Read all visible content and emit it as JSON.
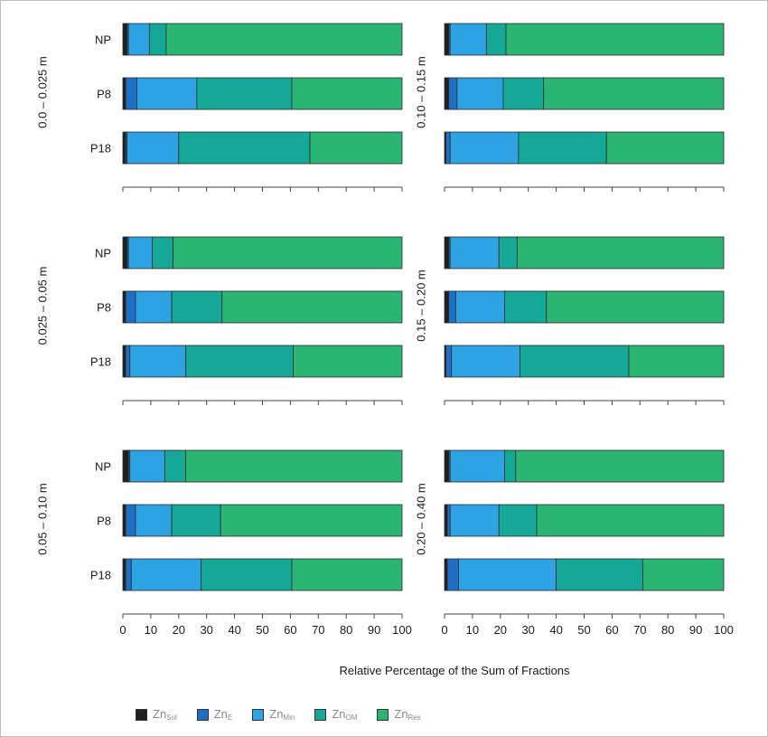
{
  "chart_data": {
    "type": "bar",
    "orientation": "horizontal",
    "stacked": true,
    "xlabel": "Relative Percentage of the Sum of Fractions",
    "xlim": [
      0,
      100
    ],
    "xticks": [
      0,
      10,
      20,
      30,
      40,
      50,
      60,
      70,
      80,
      90,
      100
    ],
    "categories": [
      "NP",
      "P8",
      "P18"
    ],
    "fractions": [
      {
        "name": "Zn",
        "sub": "Sol",
        "color": "#1f1f1f"
      },
      {
        "name": "Zn",
        "sub": "E",
        "color": "#1f6fc4"
      },
      {
        "name": "Zn",
        "sub": "Min",
        "color": "#2ea3e3"
      },
      {
        "name": "Zn",
        "sub": "OM",
        "color": "#16a896"
      },
      {
        "name": "Zn",
        "sub": "Res",
        "color": "#2ab573"
      }
    ],
    "panels": [
      {
        "depth": "0.0 – 0.025 m",
        "values": {
          "NP": [
            1.5,
            0.5,
            7.5,
            6,
            84.5
          ],
          "P8": [
            1,
            4,
            21.5,
            34,
            39.5
          ],
          "P18": [
            1,
            0.5,
            18.5,
            47,
            33
          ]
        }
      },
      {
        "depth": "0.10 – 0.15 m",
        "values": {
          "NP": [
            1.5,
            0.5,
            13,
            7,
            78
          ],
          "P8": [
            1.5,
            3,
            16.5,
            14.5,
            64.5
          ],
          "P18": [
            0.5,
            1.5,
            24.5,
            31.5,
            42
          ]
        }
      },
      {
        "depth": "0.025 – 0.05 m",
        "values": {
          "NP": [
            1.5,
            0.5,
            8.5,
            7.5,
            82
          ],
          "P8": [
            1,
            3.5,
            13,
            18,
            64.5
          ],
          "P18": [
            1,
            1.5,
            20,
            38.5,
            39
          ]
        }
      },
      {
        "depth": "0.15 – 0.20 m",
        "values": {
          "NP": [
            1.5,
            0.5,
            17.5,
            6.5,
            74
          ],
          "P8": [
            1.5,
            2.5,
            17.5,
            15,
            63.5
          ],
          "P18": [
            0.5,
            2,
            24.5,
            39,
            34
          ]
        }
      },
      {
        "depth": "0.05 – 0.10 m",
        "values": {
          "NP": [
            2,
            0.5,
            12.5,
            7.5,
            77.5
          ],
          "P8": [
            1,
            3.5,
            13,
            17.5,
            65
          ],
          "P18": [
            1,
            2,
            25,
            32.5,
            39.5
          ]
        }
      },
      {
        "depth": "0.20 – 0.40 m",
        "values": {
          "NP": [
            1.5,
            0.5,
            19.5,
            4,
            74.5
          ],
          "P8": [
            1,
            1,
            17.5,
            13.5,
            67
          ],
          "P18": [
            1,
            4,
            35,
            31,
            29
          ]
        }
      }
    ]
  }
}
